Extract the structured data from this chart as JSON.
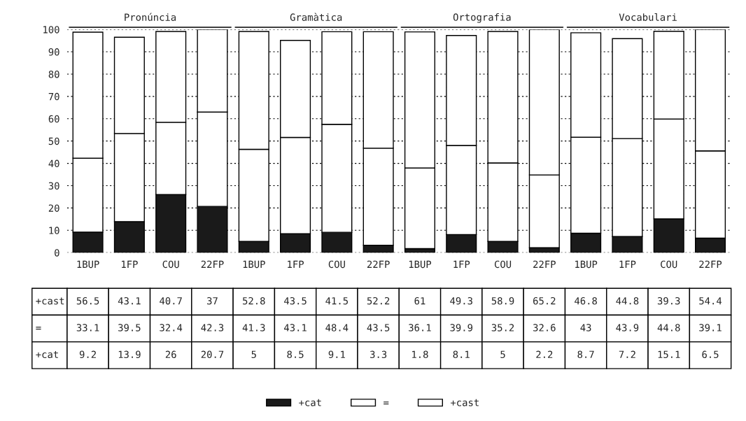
{
  "chart_data": {
    "type": "bar",
    "stacked": true,
    "categories": [
      "1BUP",
      "1FP",
      "COU",
      "22FP",
      "1BUP",
      "1FP",
      "COU",
      "22FP",
      "1BUP",
      "1FP",
      "COU",
      "22FP",
      "1BUP",
      "1FP",
      "COU",
      "22FP"
    ],
    "series": [
      {
        "name": "+cat",
        "color": "#1a1a1a",
        "values": [
          9.2,
          13.9,
          26,
          20.7,
          5,
          8.5,
          9.1,
          3.3,
          1.8,
          8.1,
          5,
          2.2,
          8.7,
          7.2,
          15.1,
          6.5
        ]
      },
      {
        "name": "=",
        "color": "#ffffff",
        "values": [
          33.1,
          39.5,
          32.4,
          42.3,
          41.3,
          43.1,
          48.4,
          43.5,
          36.1,
          39.9,
          35.2,
          32.6,
          43,
          43.9,
          44.8,
          39.1
        ]
      },
      {
        "name": "+cast",
        "color": "#ffffff",
        "values": [
          56.5,
          43.1,
          40.7,
          37,
          52.8,
          43.5,
          41.5,
          52.2,
          61,
          49.3,
          58.9,
          65.2,
          46.8,
          44.8,
          39.3,
          54.4
        ]
      }
    ],
    "annotations": [
      "Pronúncia",
      "Gramàtica",
      "Ortografia",
      "Vocabulari"
    ],
    "ylim": [
      0,
      100
    ],
    "yticks": [
      0,
      10,
      20,
      30,
      40,
      50,
      60,
      70,
      80,
      90,
      100
    ],
    "grid": "y",
    "legend": "bottom",
    "data_labels": true
  }
}
